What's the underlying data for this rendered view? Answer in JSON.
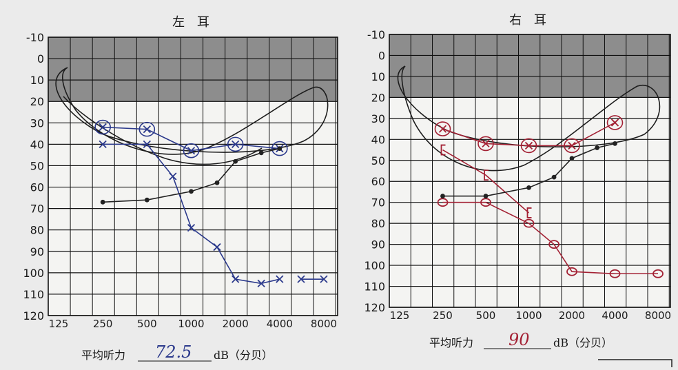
{
  "chart_data": [
    {
      "type": "line",
      "title": "左 耳",
      "y_ticks": [
        "-10",
        "0",
        "10",
        "20",
        "30",
        "40",
        "50",
        "60",
        "70",
        "80",
        "90",
        "100",
        "110",
        "120"
      ],
      "x_ticks": [
        "125",
        "250",
        "500",
        "1000",
        "2000",
        "4000",
        "8000"
      ],
      "ylim": [
        -10,
        120
      ],
      "y_inverted": true,
      "x_scale": "log2",
      "normal_zone": [
        -10,
        20
      ],
      "grid": true,
      "series": [
        {
          "marker": "x-circle",
          "color": "#2c3a8c",
          "points": [
            [
              250,
              32
            ],
            [
              500,
              33
            ],
            [
              1000,
              43
            ],
            [
              2000,
              40
            ],
            [
              4000,
              42
            ]
          ]
        },
        {
          "marker": "x",
          "color": "#2c3a8c",
          "points": [
            [
              250,
              40
            ],
            [
              500,
              40
            ],
            [
              750,
              55
            ],
            [
              1000,
              79
            ],
            [
              1500,
              88
            ],
            [
              2000,
              103
            ],
            [
              3000,
              105
            ],
            [
              4000,
              103
            ]
          ]
        },
        {
          "marker": "x",
          "color": "#2c3a8c",
          "points": [
            [
              5600,
              103
            ],
            [
              8000,
              103
            ]
          ]
        },
        {
          "marker": "dot",
          "color": "#222222",
          "points": [
            [
              250,
              67
            ],
            [
              500,
              66
            ],
            [
              1000,
              62
            ],
            [
              1500,
              58
            ],
            [
              2000,
              48
            ],
            [
              3000,
              44
            ],
            [
              4000,
              42
            ]
          ]
        }
      ],
      "footer": {
        "label": "平均听力",
        "value": "72.5",
        "unit": "dB（分贝）"
      }
    },
    {
      "type": "line",
      "title": "右 耳",
      "y_ticks": [
        "-10",
        "0",
        "10",
        "20",
        "30",
        "40",
        "50",
        "60",
        "70",
        "80",
        "90",
        "100",
        "110",
        "120"
      ],
      "x_ticks": [
        "125",
        "250",
        "500",
        "1000",
        "2000",
        "4000",
        "8000"
      ],
      "ylim": [
        -10,
        120
      ],
      "y_inverted": true,
      "x_scale": "log2",
      "normal_zone": [
        -10,
        20
      ],
      "grid": true,
      "series": [
        {
          "marker": "x-circle",
          "color": "#a32134",
          "points": [
            [
              250,
              35
            ],
            [
              500,
              42
            ],
            [
              1000,
              43
            ],
            [
              2000,
              43
            ],
            [
              4000,
              32
            ]
          ]
        },
        {
          "marker": "o",
          "color": "#a32134",
          "points": [
            [
              250,
              70
            ],
            [
              500,
              70
            ],
            [
              1000,
              80
            ],
            [
              1500,
              90
            ],
            [
              2000,
              103
            ],
            [
              4000,
              104
            ],
            [
              8000,
              104
            ]
          ]
        },
        {
          "marker": "bracket",
          "color": "#a32134",
          "points": [
            [
              250,
              45
            ],
            [
              500,
              57
            ],
            [
              1000,
              75
            ]
          ]
        },
        {
          "marker": "dot",
          "color": "#222222",
          "points": [
            [
              250,
              67
            ],
            [
              500,
              67
            ],
            [
              1000,
              63
            ],
            [
              1500,
              58
            ],
            [
              2000,
              49
            ],
            [
              3000,
              44
            ],
            [
              4000,
              42
            ]
          ]
        }
      ],
      "footer": {
        "label": "平均听力",
        "value": "90",
        "unit": "dB（分贝）"
      }
    }
  ]
}
